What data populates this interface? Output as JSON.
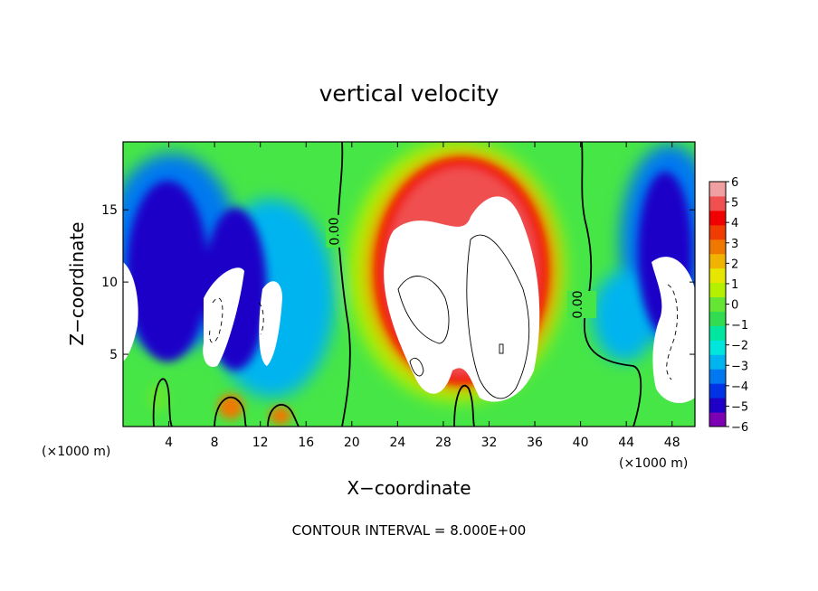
{
  "chart_data": {
    "type": "heatmap",
    "title": "vertical velocity",
    "xlabel": "X−coordinate",
    "ylabel": "Z−coordinate",
    "x_unit_left": "(×1000 m)",
    "x_unit_right": "(×1000 m)",
    "xlim": [
      0,
      50
    ],
    "ylim": [
      0,
      19.7
    ],
    "x_ticks": [
      4,
      8,
      12,
      16,
      20,
      24,
      28,
      32,
      36,
      40,
      44,
      48
    ],
    "y_ticks": [
      5,
      10,
      15
    ],
    "colorbar": {
      "ticks": [
        "6",
        "5",
        "4",
        "3",
        "2",
        "1",
        "0",
        "−1",
        "−2",
        "−3",
        "−4",
        "−5",
        "−6"
      ],
      "range": [
        -6,
        6
      ],
      "colors_low_to_high": [
        "#7d00b4",
        "#1e00c8",
        "#0032e6",
        "#0078f0",
        "#00b4f0",
        "#00e6dc",
        "#00e6a0",
        "#32dc50",
        "#64e632",
        "#b4f000",
        "#e6e600",
        "#f0b400",
        "#f07800",
        "#f03c00",
        "#f00000",
        "#f05050",
        "#f0a0a0"
      ],
      "above_max_color": "#ffffff"
    },
    "contour_labels": [
      "0.00",
      "0.00"
    ],
    "annotation": "CONTOUR INTERVAL = 8.000E+00"
  }
}
